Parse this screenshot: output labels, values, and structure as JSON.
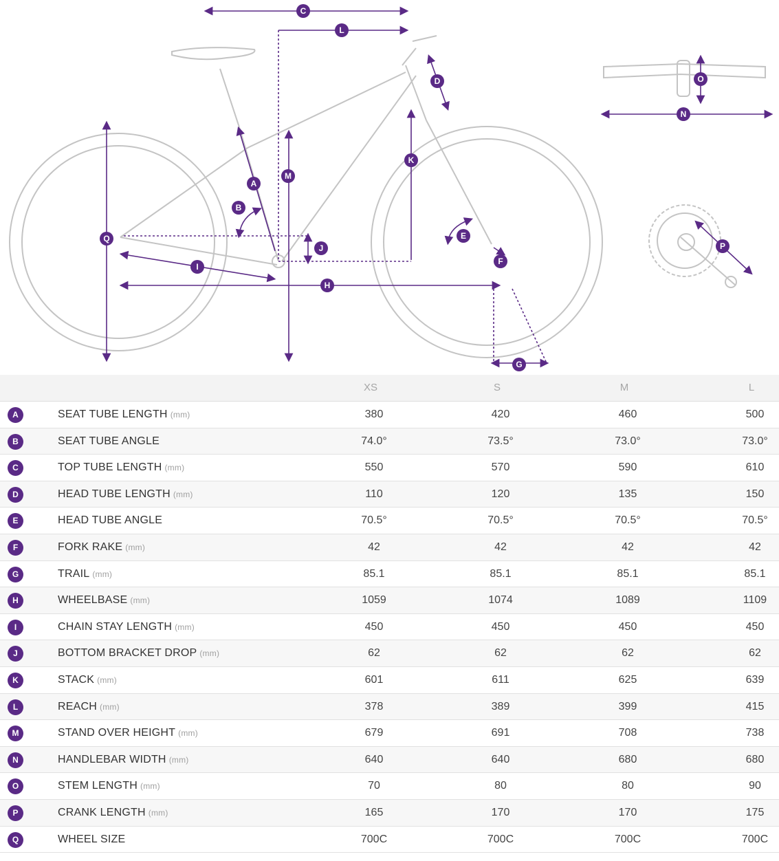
{
  "markers": {
    "A": "A",
    "B": "B",
    "C": "C",
    "D": "D",
    "E": "E",
    "F": "F",
    "G": "G",
    "H": "H",
    "I": "I",
    "J": "J",
    "K": "K",
    "L": "L",
    "M": "M",
    "N": "N",
    "O": "O",
    "P": "P",
    "Q": "Q"
  },
  "table": {
    "sizes": [
      "XS",
      "S",
      "M",
      "L"
    ],
    "rows": [
      {
        "letter": "A",
        "label": "SEAT TUBE LENGTH",
        "unit": "(mm)",
        "values": [
          "380",
          "420",
          "460",
          "500"
        ]
      },
      {
        "letter": "B",
        "label": "SEAT TUBE ANGLE",
        "unit": "",
        "values": [
          "74.0°",
          "73.5°",
          "73.0°",
          "73.0°"
        ]
      },
      {
        "letter": "C",
        "label": "TOP TUBE LENGTH",
        "unit": "(mm)",
        "values": [
          "550",
          "570",
          "590",
          "610"
        ]
      },
      {
        "letter": "D",
        "label": "HEAD TUBE LENGTH",
        "unit": "(mm)",
        "values": [
          "110",
          "120",
          "135",
          "150"
        ]
      },
      {
        "letter": "E",
        "label": "HEAD TUBE ANGLE",
        "unit": "",
        "values": [
          "70.5°",
          "70.5°",
          "70.5°",
          "70.5°"
        ]
      },
      {
        "letter": "F",
        "label": "FORK RAKE",
        "unit": "(mm)",
        "values": [
          "42",
          "42",
          "42",
          "42"
        ]
      },
      {
        "letter": "G",
        "label": "TRAIL",
        "unit": "(mm)",
        "values": [
          "85.1",
          "85.1",
          "85.1",
          "85.1"
        ]
      },
      {
        "letter": "H",
        "label": "WHEELBASE",
        "unit": "(mm)",
        "values": [
          "1059",
          "1074",
          "1089",
          "1109"
        ]
      },
      {
        "letter": "I",
        "label": "CHAIN STAY LENGTH",
        "unit": "(mm)",
        "values": [
          "450",
          "450",
          "450",
          "450"
        ]
      },
      {
        "letter": "J",
        "label": "BOTTOM BRACKET DROP",
        "unit": "(mm)",
        "values": [
          "62",
          "62",
          "62",
          "62"
        ]
      },
      {
        "letter": "K",
        "label": "STACK",
        "unit": "(mm)",
        "values": [
          "601",
          "611",
          "625",
          "639"
        ]
      },
      {
        "letter": "L",
        "label": "REACH",
        "unit": "(mm)",
        "values": [
          "378",
          "389",
          "399",
          "415"
        ]
      },
      {
        "letter": "M",
        "label": "STAND OVER HEIGHT",
        "unit": "(mm)",
        "values": [
          "679",
          "691",
          "708",
          "738"
        ]
      },
      {
        "letter": "N",
        "label": "HANDLEBAR WIDTH",
        "unit": "(mm)",
        "values": [
          "640",
          "640",
          "680",
          "680"
        ]
      },
      {
        "letter": "O",
        "label": "STEM LENGTH",
        "unit": "(mm)",
        "values": [
          "70",
          "80",
          "80",
          "90"
        ]
      },
      {
        "letter": "P",
        "label": "CRANK LENGTH",
        "unit": "(mm)",
        "values": [
          "165",
          "170",
          "170",
          "175"
        ]
      },
      {
        "letter": "Q",
        "label": "WHEEL SIZE",
        "unit": "",
        "values": [
          "700C",
          "700C",
          "700C",
          "700C"
        ]
      }
    ]
  },
  "colors": {
    "accent": "#5a2a86",
    "frame": "#bdbdbd"
  }
}
